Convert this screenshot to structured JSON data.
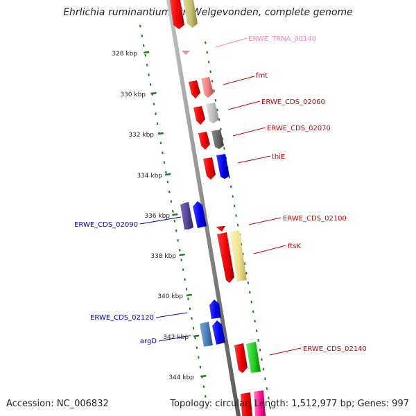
{
  "title": "Ehrlichia ruminantium str. Welgevonden, complete genome",
  "accession": "Accession: NC_006832",
  "summary": "Topology: circular; Length: 1,512,977 bp; Genes: 997",
  "colors": {
    "backbone": "#8c8c8c",
    "tick": "#1f7a1f",
    "right_label": "#cc0000",
    "left_label": "#0000aa",
    "trna_label": "#ee88bb"
  },
  "scale_ticks": [
    {
      "label": "328 kbp",
      "kbp": 328
    },
    {
      "label": "330 kbp",
      "kbp": 330
    },
    {
      "label": "332 kbp",
      "kbp": 332
    },
    {
      "label": "334 kbp",
      "kbp": 334
    },
    {
      "label": "336 kbp",
      "kbp": 336
    },
    {
      "label": "338 kbp",
      "kbp": 338
    },
    {
      "label": "340 kbp",
      "kbp": 340
    },
    {
      "label": "342 kbp",
      "kbp": 342
    },
    {
      "label": "344 kbp",
      "kbp": 344
    }
  ],
  "gene_labels_right": [
    {
      "text": "ERWE_TRNA_00140",
      "color": "#ee88bb"
    },
    {
      "text": "fmt",
      "color": "#cc0000"
    },
    {
      "text": "ERWE_CDS_02060",
      "color": "#cc0000"
    },
    {
      "text": "ERWE_CDS_02070",
      "color": "#cc0000"
    },
    {
      "text": "thiE",
      "color": "#cc0000"
    },
    {
      "text": "ERWE_CDS_02100",
      "color": "#cc0000"
    },
    {
      "text": "ftsK",
      "color": "#cc0000"
    },
    {
      "text": "ERWE_CDS_02140",
      "color": "#cc0000"
    }
  ],
  "gene_labels_left": [
    {
      "text": "ERWE_CDS_02090",
      "color": "#0000aa"
    },
    {
      "text": "ERWE_CDS_02120",
      "color": "#0000aa"
    },
    {
      "text": "argD",
      "color": "#0000aa"
    }
  ]
}
